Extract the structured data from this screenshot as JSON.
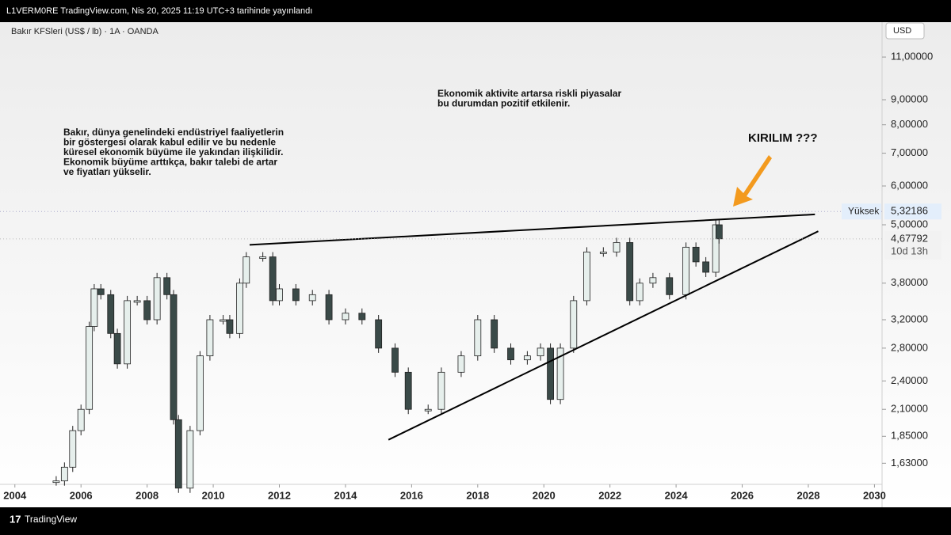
{
  "header": {
    "text": "L1VERM0RE TradingView.com, Nis 20, 2025 11:19 UTC+3 tarihinde yayınlandı"
  },
  "footer": {
    "brand": "TradingView"
  },
  "chart_data": {
    "type": "candlestick",
    "title": "Bakır KFSleri (US$ / lb) · 1A · OANDA",
    "currency": "USD",
    "log_scale": true,
    "xlim": [
      2003.55,
      2030.23
    ],
    "xticks": [
      2004,
      2006,
      2008,
      2010,
      2012,
      2014,
      2016,
      2018,
      2020,
      2022,
      2024,
      2026,
      2028,
      2030
    ],
    "ylim": [
      1.476,
      12.96
    ],
    "yticks": [
      {
        "value": 1.63,
        "label": "1,63000"
      },
      {
        "value": 1.85,
        "label": "1,85000"
      },
      {
        "value": 2.1,
        "label": "2,10000"
      },
      {
        "value": 2.4,
        "label": "2,40000"
      },
      {
        "value": 2.8,
        "label": "2,80000"
      },
      {
        "value": 3.2,
        "label": "3,20000"
      },
      {
        "value": 3.8,
        "label": "3,80000"
      },
      {
        "value": 5,
        "label": "5,00000"
      },
      {
        "value": 6,
        "label": "6,00000"
      },
      {
        "value": 7,
        "label": "7,00000"
      },
      {
        "value": 8,
        "label": "8,00000"
      },
      {
        "value": 9,
        "label": "9,00000"
      },
      {
        "value": 11,
        "label": "11,00000"
      }
    ],
    "up_color": "#e6efec",
    "down_color": "#3a4a48",
    "x": [
      2005.25,
      2005.5,
      2005.75,
      2006.0,
      2006.25,
      2006.4,
      2006.6,
      2006.9,
      2007.1,
      2007.4,
      2007.7,
      2008.0,
      2008.3,
      2008.6,
      2008.8,
      2008.95,
      2009.3,
      2009.6,
      2009.9,
      2010.3,
      2010.5,
      2010.8,
      2011.0,
      2011.5,
      2011.8,
      2012.0,
      2012.5,
      2013.0,
      2013.5,
      2014.0,
      2014.5,
      2015.0,
      2015.5,
      2015.9,
      2016.5,
      2016.9,
      2017.5,
      2018.0,
      2018.5,
      2019.0,
      2019.5,
      2019.9,
      2020.2,
      2020.5,
      2020.9,
      2021.3,
      2021.8,
      2022.2,
      2022.6,
      2022.9,
      2023.3,
      2023.8,
      2024.3,
      2024.6,
      2024.9,
      2025.2,
      2025.3
    ],
    "values": [
      1.5,
      1.6,
      1.9,
      2.1,
      3.1,
      3.7,
      3.6,
      3.0,
      2.6,
      3.5,
      3.5,
      3.2,
      3.9,
      3.6,
      2.0,
      1.45,
      1.9,
      2.7,
      3.2,
      3.2,
      3.0,
      3.8,
      4.3,
      4.3,
      3.5,
      3.7,
      3.5,
      3.6,
      3.2,
      3.3,
      3.2,
      2.8,
      2.5,
      2.1,
      2.1,
      2.5,
      2.7,
      3.2,
      2.8,
      2.65,
      2.7,
      2.8,
      2.2,
      2.8,
      3.5,
      4.4,
      4.4,
      4.6,
      3.5,
      3.8,
      3.9,
      3.6,
      4.5,
      4.2,
      4.0,
      5.0,
      4.68
    ],
    "trendlines": [
      {
        "x": [
          2011.1,
          2028.2
        ],
        "y": [
          4.55,
          5.25
        ]
      },
      {
        "x": [
          2015.3,
          2028.3
        ],
        "y": [
          1.82,
          4.85
        ]
      }
    ],
    "high": {
      "name": "Yüksek",
      "value": 5.32186,
      "label": "5,32186"
    },
    "last": {
      "value": 4.67792,
      "label": "4,67792",
      "countdown": "10d 13h"
    },
    "annotations": [
      {
        "lines": [
          "Bakır, dünya genelindeki endüstriyel faaliyetlerin",
          "bir göstergesi olarak kabul edilir ve bu nedenle",
          "küresel ekonomik büyüme ile yakından ilişkilidir.",
          "Ekonomik büyüme arttıkça, bakır talebi de artar",
          "ve fiyatları yükselir."
        ]
      },
      {
        "lines": [
          "Ekonomik aktivite artarsa riskli piyasalar",
          "bu durumdan pozitif etkilenir."
        ]
      },
      {
        "lines": [
          "KIRILIM ???"
        ]
      }
    ]
  }
}
